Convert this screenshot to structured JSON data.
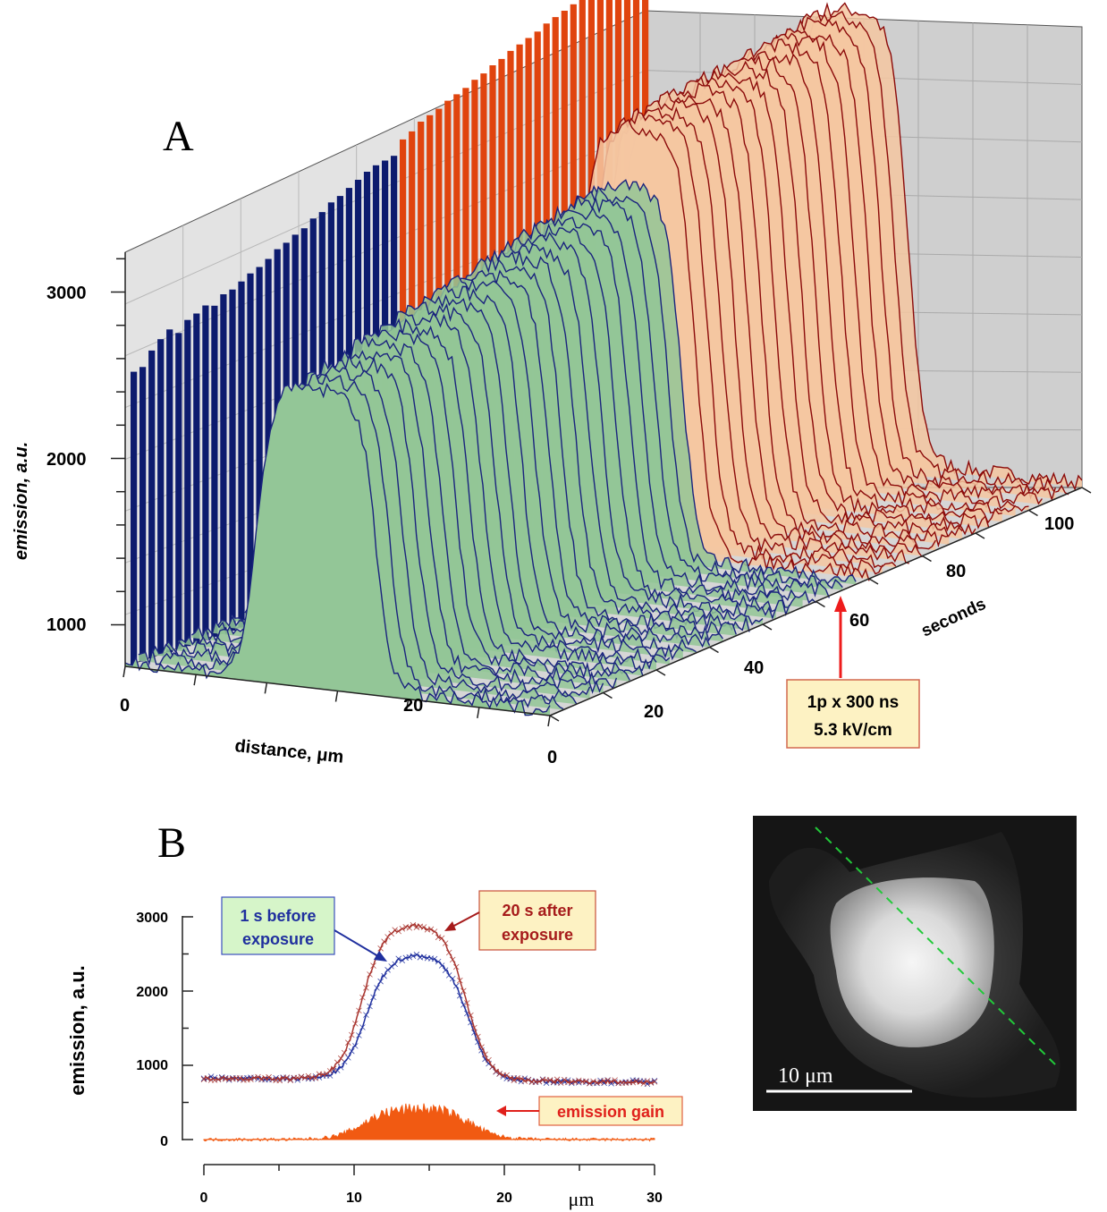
{
  "panel_labels": {
    "a": "A",
    "b": "B"
  },
  "chart_data": [
    {
      "type": "3d-waterfall",
      "panel": "A",
      "xlabel": "distance, μm",
      "ylabel": "emission, a.u.",
      "zlabel": "seconds",
      "xlim": [
        0,
        30
      ],
      "zlim": [
        0,
        100
      ],
      "ylim": [
        750,
        3300
      ],
      "x_ticks": [
        0,
        20
      ],
      "z_ticks": [
        0,
        20,
        40,
        60,
        80,
        100
      ],
      "y_ticks": [
        1000,
        2000,
        3000
      ],
      "x_tick_labels": [
        "0",
        "20"
      ],
      "z_tick_labels": [
        "0",
        "20",
        "40",
        "60",
        "80",
        "100"
      ],
      "y_tick_labels": [
        "1000",
        "2000",
        "3000"
      ],
      "series": [
        {
          "time_range": [
            0,
            59
          ],
          "color": "#1a237e",
          "fill": "#93c697"
        },
        {
          "time_range": [
            60,
            100
          ],
          "color": "#8b0a0a",
          "fill": "#f4c7a1"
        }
      ],
      "side_bar_color_before": "#0d1b6e",
      "side_bar_color_after": "#e0440e",
      "side_bar_values_before": [
        2510,
        2520,
        2600,
        2650,
        2690,
        2650,
        2710,
        2730,
        2760,
        2740,
        2790,
        2800,
        2830,
        2860,
        2880,
        2910,
        2950,
        2970,
        3000,
        3020,
        3060,
        3080,
        3120,
        3140,
        3170,
        3200,
        3230,
        3250,
        3260,
        3270
      ],
      "side_bar_values_after": [
        3350,
        3380,
        3420,
        3440,
        3460,
        3490,
        3510,
        3530,
        3560,
        3580,
        3610,
        3630,
        3660,
        3680,
        3700,
        3720,
        3750,
        3770,
        3790,
        3810,
        3830,
        3850,
        3870,
        3890,
        3910,
        3930,
        3950,
        3970
      ],
      "annotation": {
        "line1": "1p x 300 ns",
        "line2": "5.3 kV/cm",
        "at_seconds": 60
      }
    },
    {
      "type": "line",
      "panel": "B",
      "xlabel": "μm",
      "ylabel": "emission, a.u.",
      "xlim": [
        0,
        30
      ],
      "ylim": [
        0,
        3000
      ],
      "x_ticks": [
        0,
        10,
        20,
        30
      ],
      "y_ticks": [
        0,
        1000,
        2000,
        3000
      ],
      "x_tick_labels": [
        "0",
        "10",
        "20",
        "30"
      ],
      "y_tick_labels": [
        "0",
        "1000",
        "2000",
        "3000"
      ],
      "series": [
        {
          "label": "1 s before exposure",
          "color": "#1f2f9e",
          "baseline": 800,
          "peak": 2500,
          "center": 14.2,
          "half_width": 3.4
        },
        {
          "label": "20 s after exposure",
          "color": "#a8342e",
          "baseline": 800,
          "peak": 2900,
          "center": 14.0,
          "half_width": 3.5
        },
        {
          "label": "emission gain",
          "color": "#f15a12",
          "baseline": 0,
          "peak": 420,
          "center": 14.2,
          "half_width": 3.6
        }
      ],
      "annotations": {
        "before_line1": "1 s before",
        "before_line2": "exposure",
        "after_line1": "20 s after",
        "after_line2": "exposure",
        "gain": "emission gain"
      }
    }
  ],
  "micrograph": {
    "scalebar_label": "10 μm",
    "line_color": "#22c93a"
  }
}
